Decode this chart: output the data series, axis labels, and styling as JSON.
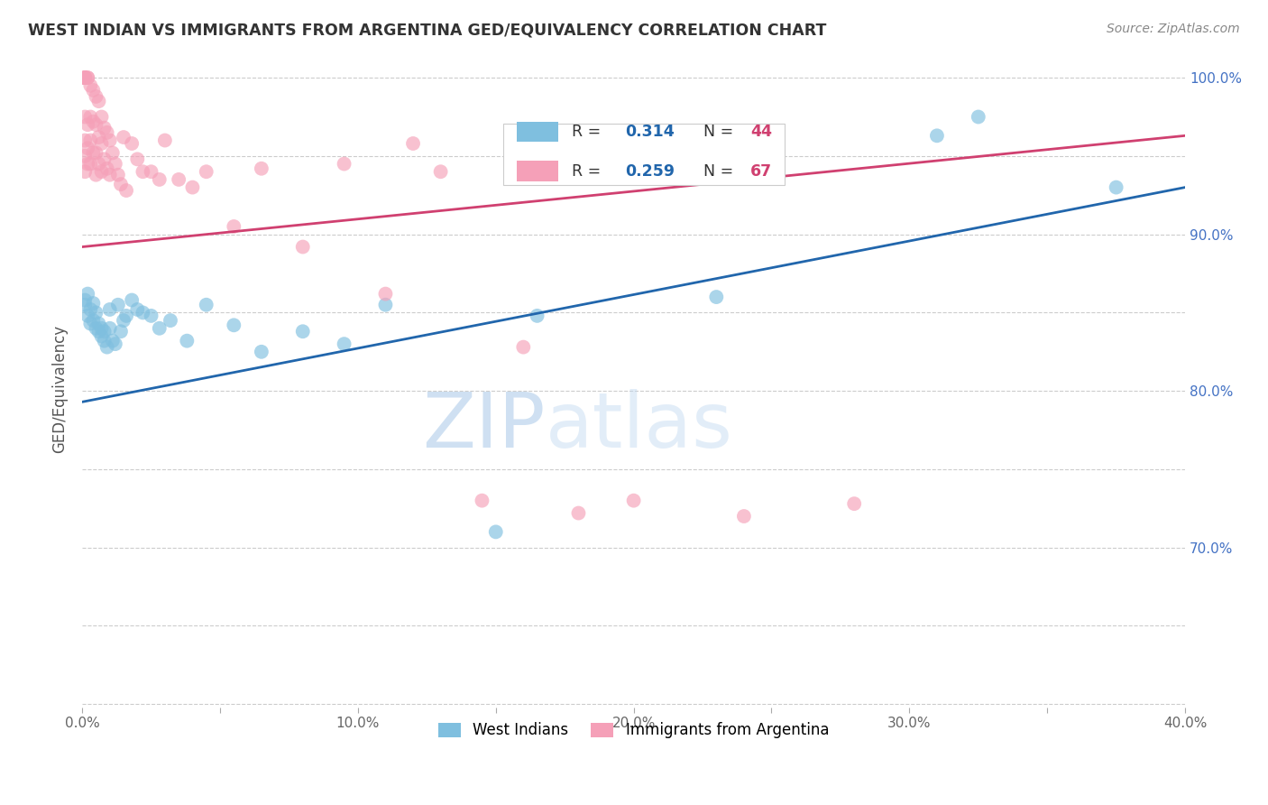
{
  "title": "WEST INDIAN VS IMMIGRANTS FROM ARGENTINA GED/EQUIVALENCY CORRELATION CHART",
  "source": "Source: ZipAtlas.com",
  "ylabel": "GED/Equivalency",
  "xlim": [
    0.0,
    0.4
  ],
  "ylim": [
    0.598,
    1.005
  ],
  "xticks": [
    0.0,
    0.05,
    0.1,
    0.15,
    0.2,
    0.25,
    0.3,
    0.35,
    0.4
  ],
  "xticklabels": [
    "0.0%",
    "",
    "10.0%",
    "",
    "20.0%",
    "",
    "30.0%",
    "",
    "40.0%"
  ],
  "yticks": [
    0.6,
    0.65,
    0.7,
    0.75,
    0.8,
    0.85,
    0.9,
    0.95,
    1.0
  ],
  "yticklabels_right": [
    "",
    "",
    "70.0%",
    "",
    "80.0%",
    "",
    "90.0%",
    "",
    "100.0%"
  ],
  "blue_color": "#7fbfdf",
  "pink_color": "#f5a0b8",
  "blue_line_color": "#2166ac",
  "pink_line_color": "#d04070",
  "blue_R": "0.314",
  "blue_N": "44",
  "pink_R": "0.259",
  "pink_N": "67",
  "watermark_zip": "ZIP",
  "watermark_atlas": "atlas",
  "blue_x": [
    0.001,
    0.001,
    0.002,
    0.002,
    0.003,
    0.003,
    0.004,
    0.004,
    0.005,
    0.005,
    0.006,
    0.006,
    0.007,
    0.007,
    0.008,
    0.008,
    0.009,
    0.01,
    0.01,
    0.011,
    0.012,
    0.013,
    0.014,
    0.015,
    0.016,
    0.018,
    0.02,
    0.022,
    0.025,
    0.028,
    0.032,
    0.038,
    0.045,
    0.055,
    0.065,
    0.08,
    0.095,
    0.11,
    0.15,
    0.165,
    0.23,
    0.31,
    0.325,
    0.375
  ],
  "blue_y": [
    0.855,
    0.858,
    0.848,
    0.862,
    0.843,
    0.852,
    0.856,
    0.845,
    0.84,
    0.85,
    0.838,
    0.843,
    0.835,
    0.84,
    0.832,
    0.838,
    0.828,
    0.852,
    0.84,
    0.832,
    0.83,
    0.855,
    0.838,
    0.845,
    0.848,
    0.858,
    0.852,
    0.85,
    0.848,
    0.84,
    0.845,
    0.832,
    0.855,
    0.842,
    0.825,
    0.838,
    0.83,
    0.855,
    0.71,
    0.848,
    0.86,
    0.963,
    0.975,
    0.93
  ],
  "pink_x": [
    0.001,
    0.001,
    0.001,
    0.001,
    0.001,
    0.001,
    0.001,
    0.001,
    0.001,
    0.001,
    0.002,
    0.002,
    0.002,
    0.002,
    0.002,
    0.003,
    0.003,
    0.003,
    0.003,
    0.004,
    0.004,
    0.004,
    0.005,
    0.005,
    0.005,
    0.005,
    0.006,
    0.006,
    0.006,
    0.007,
    0.007,
    0.007,
    0.008,
    0.008,
    0.009,
    0.009,
    0.01,
    0.01,
    0.011,
    0.012,
    0.013,
    0.014,
    0.015,
    0.016,
    0.018,
    0.02,
    0.022,
    0.025,
    0.028,
    0.03,
    0.035,
    0.04,
    0.045,
    0.055,
    0.065,
    0.08,
    0.095,
    0.11,
    0.12,
    0.13,
    0.145,
    0.16,
    0.18,
    0.2,
    0.22,
    0.24,
    0.28
  ],
  "pink_y": [
    1.0,
    1.0,
    1.0,
    1.0,
    1.0,
    1.0,
    0.975,
    0.96,
    0.95,
    0.94,
    1.0,
    1.0,
    0.97,
    0.955,
    0.945,
    0.995,
    0.975,
    0.96,
    0.945,
    0.992,
    0.972,
    0.952,
    0.988,
    0.97,
    0.952,
    0.938,
    0.985,
    0.962,
    0.945,
    0.975,
    0.958,
    0.94,
    0.968,
    0.948,
    0.965,
    0.942,
    0.96,
    0.938,
    0.952,
    0.945,
    0.938,
    0.932,
    0.962,
    0.928,
    0.958,
    0.948,
    0.94,
    0.94,
    0.935,
    0.96,
    0.935,
    0.93,
    0.94,
    0.905,
    0.942,
    0.892,
    0.945,
    0.862,
    0.958,
    0.94,
    0.73,
    0.828,
    0.722,
    0.73,
    0.96,
    0.72,
    0.728
  ],
  "blue_trend_x": [
    0.0,
    0.4
  ],
  "blue_trend_y": [
    0.793,
    0.93
  ],
  "pink_trend_x": [
    0.0,
    0.4
  ],
  "pink_trend_y": [
    0.892,
    0.963
  ]
}
